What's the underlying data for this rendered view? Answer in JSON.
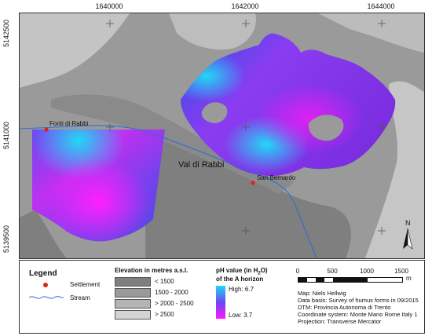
{
  "map": {
    "coords_top": [
      "1640000",
      "1642000",
      "1644000"
    ],
    "coords_left": [
      "5142500",
      "5141000",
      "5139500"
    ],
    "places": {
      "fonti": "Fonti di Rabbi",
      "valley": "Val di Rabbi",
      "san_bernardo": "San Bernardo"
    },
    "north": "N",
    "colors": {
      "settlement": "#e0201c",
      "stream": "#2a6fd6",
      "ph_high": "#1fd9f5",
      "ph_low": "#ff19ff"
    }
  },
  "legend": {
    "title": "Legend",
    "settlement": "Settlement",
    "stream": "Stream",
    "elevation_title": "Elevation in metres a.s.l.",
    "elevation_classes": [
      "< 1500",
      "1500 - 2000",
      "> 2000 - 2500",
      "> 2500"
    ],
    "ph_title_1": "pH value (in H",
    "ph_title_sub": "2",
    "ph_title_2": "O)",
    "ph_title_3": "of the A horizon",
    "ph_high": "High: 6.7",
    "ph_low": "Low: 3.7",
    "scale_labels": [
      "0",
      "500",
      "1000",
      "1500"
    ],
    "scale_unit": "m",
    "credits": [
      "Map: Niels Hellwig",
      "Data basis: Survey of humus forms in 09/2015",
      "DTM: Provincia Autonoma di Trento",
      "Coordinate system: Monte Mario Rome Italy 1",
      "Projection: Transverse Mercator"
    ]
  }
}
